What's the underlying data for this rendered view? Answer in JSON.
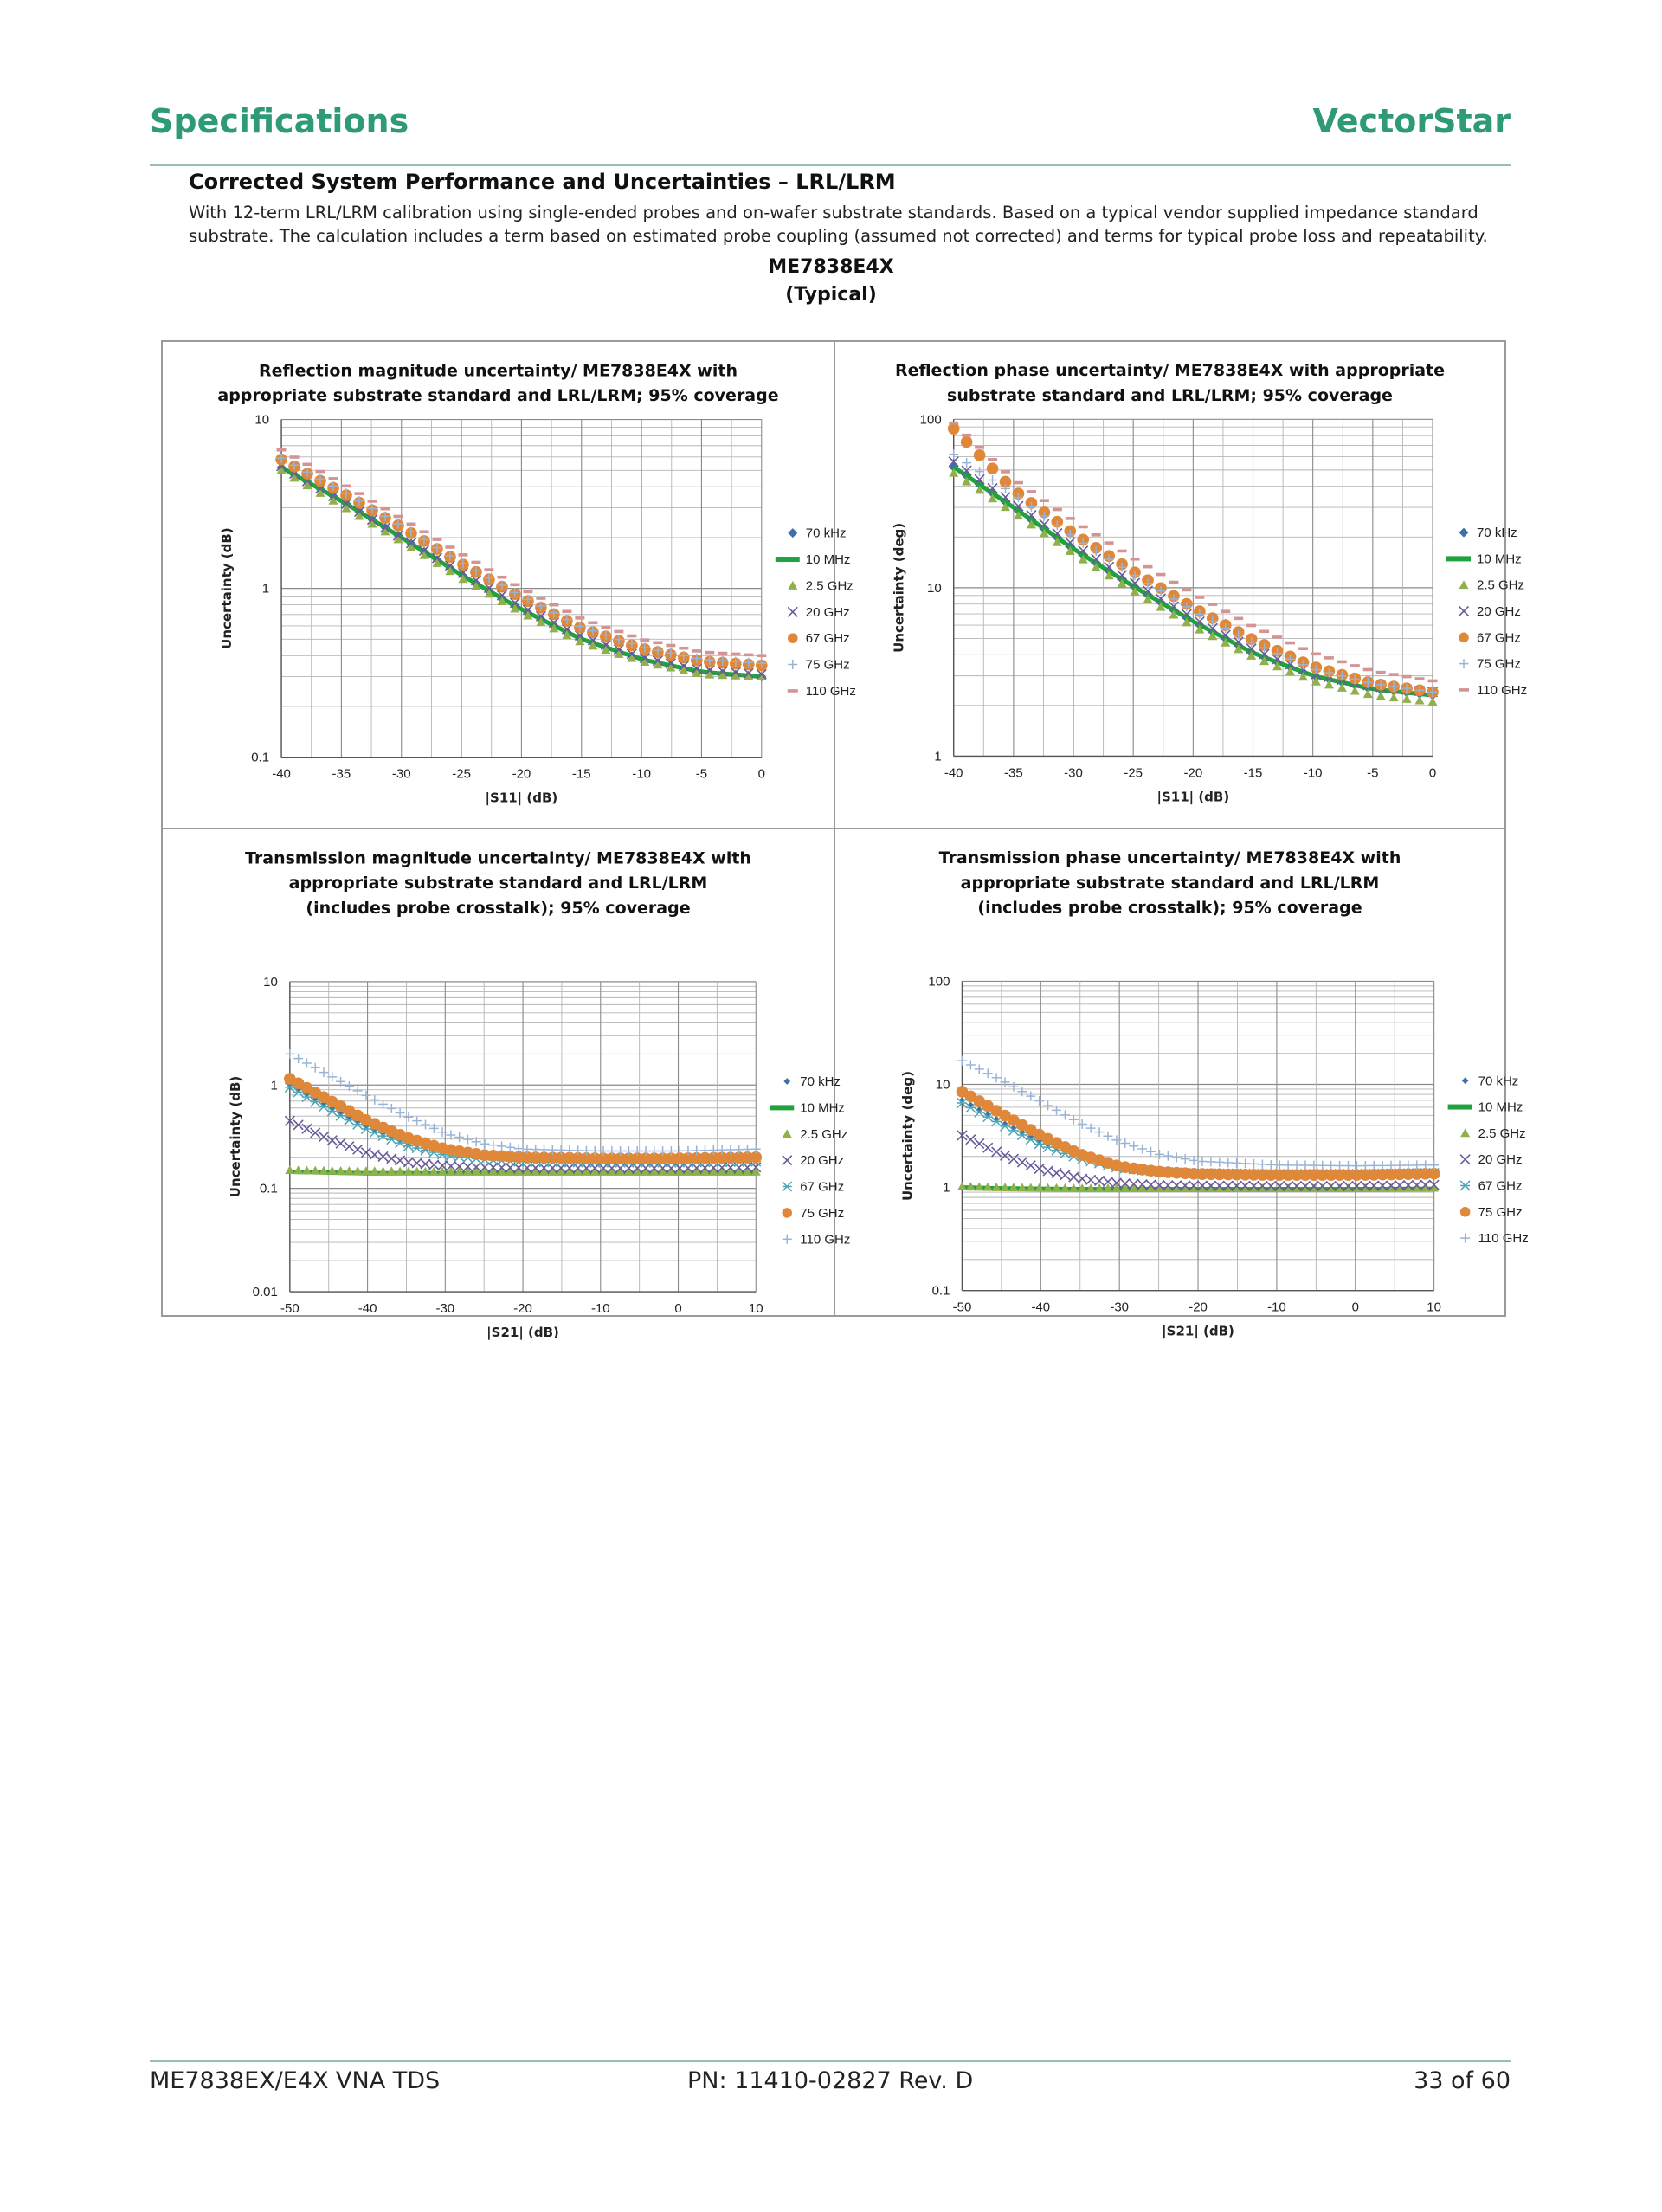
{
  "header": {
    "left": "Specifications",
    "right": "VectorStar"
  },
  "section": {
    "title": "Corrected System Performance and Uncertainties – LRL/LRM",
    "description": "With 12-term LRL/LRM calibration using single-ended probes and on-wafer substrate standards. Based on a typical vendor supplied impedance standard substrate. The calculation includes a term based on estimated probe coupling (assumed not corrected) and terms for typical probe loss and repeatability.",
    "model": "ME7838E4X",
    "qualifier": "(Typical)"
  },
  "footer": {
    "left": "ME7838EX/E4X VNA TDS",
    "center": "PN: 11410-02827  Rev. D",
    "right": "33 of 60"
  },
  "colors": {
    "70 kHz": "#3f6fa8",
    "10 MHz": "#1fa33c",
    "2.5 GHz": "#8fb04a",
    "20 GHz": "#6a5a9a",
    "67 GHz": "#e0883a",
    "75 GHz": "#9ab4d8",
    "110 GHz": "#d49494",
    "67 GHz (teal x)": "#4aa5b5"
  },
  "chart_data": [
    {
      "type": "scatter",
      "title": [
        "Reflection magnitude uncertainty/ ME7838E4X with",
        "appropriate substrate standard and LRL/LRM; 95% coverage"
      ],
      "xlabel": "|S11| (dB)",
      "ylabel": "Uncertainty (dB)",
      "xlim": [
        -40,
        0
      ],
      "xticks": [
        "-40",
        "-35",
        "-30",
        "-25",
        "-20",
        "-15",
        "-10",
        "-5",
        "0"
      ],
      "ylim": [
        0.1,
        10
      ],
      "yscale": "log",
      "yticks": [
        "0.1",
        "1",
        "10"
      ],
      "grid": true,
      "legend": "right",
      "series": [
        {
          "name": "70 kHz",
          "marker": "diamond",
          "x": [
            -40,
            -35,
            -30,
            -25,
            -20,
            -15,
            -10,
            -5,
            0
          ],
          "values": [
            5.2,
            3.3,
            2.0,
            1.2,
            0.75,
            0.5,
            0.38,
            0.32,
            0.3
          ]
        },
        {
          "name": "10 MHz",
          "marker": "line",
          "x": [
            -40,
            -35,
            -30,
            -25,
            -20,
            -15,
            -10,
            -5,
            0
          ],
          "values": [
            5.2,
            3.3,
            2.0,
            1.2,
            0.75,
            0.5,
            0.38,
            0.32,
            0.3
          ]
        },
        {
          "name": "2.5 GHz",
          "marker": "triangle",
          "x": [
            -40,
            -35,
            -30,
            -25,
            -20,
            -15,
            -10,
            -5,
            0
          ],
          "values": [
            5.0,
            3.1,
            1.9,
            1.15,
            0.72,
            0.48,
            0.37,
            0.31,
            0.3
          ]
        },
        {
          "name": "20 GHz",
          "marker": "x",
          "x": [
            -40,
            -35,
            -30,
            -25,
            -20,
            -15,
            -10,
            -5,
            0
          ],
          "values": [
            5.3,
            3.3,
            2.0,
            1.25,
            0.78,
            0.52,
            0.39,
            0.33,
            0.31
          ]
        },
        {
          "name": "67 GHz",
          "marker": "circle",
          "x": [
            -40,
            -35,
            -30,
            -25,
            -20,
            -15,
            -10,
            -5,
            0
          ],
          "values": [
            5.8,
            3.7,
            2.3,
            1.4,
            0.88,
            0.58,
            0.44,
            0.37,
            0.35
          ]
        },
        {
          "name": "75 GHz",
          "marker": "plus",
          "x": [
            -40,
            -35,
            -30,
            -25,
            -20,
            -15,
            -10,
            -5,
            0
          ],
          "values": [
            5.9,
            3.8,
            2.35,
            1.42,
            0.9,
            0.59,
            0.45,
            0.38,
            0.36
          ]
        },
        {
          "name": "110 GHz",
          "marker": "dash",
          "x": [
            -40,
            -35,
            -30,
            -25,
            -20,
            -15,
            -10,
            -5,
            0
          ],
          "values": [
            6.6,
            4.2,
            2.6,
            1.6,
            1.0,
            0.66,
            0.5,
            0.42,
            0.4
          ]
        }
      ]
    },
    {
      "type": "scatter",
      "title": [
        "Reflection phase uncertainty/ ME7838E4X with appropriate",
        "substrate standard and LRL/LRM; 95% coverage"
      ],
      "xlabel": "|S11| (dB)",
      "ylabel": "Uncertainty (deg)",
      "xlim": [
        -40,
        0
      ],
      "xticks": [
        "-40",
        "-35",
        "-30",
        "-25",
        "-20",
        "-15",
        "-10",
        "-5",
        "0"
      ],
      "ylim": [
        1,
        100
      ],
      "yscale": "log",
      "yticks": [
        "1",
        "10",
        "100"
      ],
      "grid": true,
      "legend": "right",
      "series": [
        {
          "name": "70 kHz",
          "marker": "diamond",
          "x": [
            -40,
            -35,
            -30,
            -25,
            -20,
            -15,
            -10,
            -5,
            0
          ],
          "values": [
            52,
            30,
            17,
            10.2,
            6.3,
            4.1,
            3.0,
            2.5,
            2.3
          ]
        },
        {
          "name": "10 MHz",
          "marker": "line",
          "x": [
            -40,
            -35,
            -30,
            -25,
            -20,
            -15,
            -10,
            -5,
            0
          ],
          "values": [
            52,
            30,
            17,
            10.2,
            6.3,
            4.1,
            3.0,
            2.5,
            2.3
          ]
        },
        {
          "name": "2.5 GHz",
          "marker": "triangle",
          "x": [
            -40,
            -35,
            -30,
            -25,
            -20,
            -15,
            -10,
            -5,
            0
          ],
          "values": [
            48,
            28,
            16,
            9.6,
            5.9,
            3.9,
            2.8,
            2.3,
            2.1
          ]
        },
        {
          "name": "20 GHz",
          "marker": "x",
          "x": [
            -40,
            -35,
            -30,
            -25,
            -20,
            -15,
            -10,
            -5,
            0
          ],
          "values": [
            56,
            32,
            18,
            10.8,
            6.6,
            4.3,
            3.1,
            2.6,
            2.4
          ]
        },
        {
          "name": "67 GHz",
          "marker": "circle",
          "x": [
            -40,
            -35,
            -30,
            -25,
            -20,
            -15,
            -10,
            -5,
            0
          ],
          "values": [
            88,
            38,
            21,
            12.5,
            7.6,
            4.9,
            3.4,
            2.7,
            2.4
          ]
        },
        {
          "name": "75 GHz",
          "marker": "plus",
          "x": [
            -40,
            -35,
            -30,
            -25,
            -20,
            -15,
            -10,
            -5,
            0
          ],
          "values": [
            62,
            36,
            20,
            12,
            7.3,
            4.7,
            3.3,
            2.7,
            2.4
          ]
        },
        {
          "name": "110 GHz",
          "marker": "dash",
          "x": [
            -40,
            -35,
            -30,
            -25,
            -20,
            -15,
            -10,
            -5,
            0
          ],
          "values": [
            95,
            44,
            25,
            15,
            9.2,
            5.9,
            4.1,
            3.2,
            2.8
          ]
        }
      ]
    },
    {
      "type": "scatter",
      "title": [
        "Transmission magnitude uncertainty/ ME7838E4X with",
        "appropriate substrate standard and LRL/LRM",
        "(includes probe crosstalk); 95% coverage"
      ],
      "xlabel": "|S21| (dB)",
      "ylabel": "Uncertainty (dB)",
      "xlim": [
        -50,
        10
      ],
      "xticks": [
        "-50",
        "-40",
        "-30",
        "-20",
        "-10",
        "0",
        "10"
      ],
      "ylim": [
        0.01,
        10
      ],
      "yscale": "log",
      "yticks": [
        "0.01",
        "0.1",
        "1",
        "10"
      ],
      "grid": true,
      "legend": "right",
      "series": [
        {
          "name": "70 kHz",
          "marker": "smalldiamond",
          "x": [
            -50,
            -45,
            -40,
            -35,
            -30,
            -25,
            -20,
            -10,
            0,
            10
          ],
          "values": [
            1.0,
            0.62,
            0.4,
            0.28,
            0.22,
            0.2,
            0.19,
            0.185,
            0.185,
            0.19
          ]
        },
        {
          "name": "10 MHz",
          "marker": "line",
          "x": [
            -50,
            -45,
            -40,
            -35,
            -30,
            -25,
            -20,
            -10,
            0,
            10
          ],
          "values": [
            0.145,
            0.142,
            0.14,
            0.14,
            0.14,
            0.14,
            0.14,
            0.14,
            0.14,
            0.14
          ]
        },
        {
          "name": "2.5 GHz",
          "marker": "triangle",
          "x": [
            -50,
            -45,
            -40,
            -35,
            -30,
            -25,
            -20,
            -10,
            0,
            10
          ],
          "values": [
            0.15,
            0.148,
            0.147,
            0.146,
            0.145,
            0.145,
            0.145,
            0.145,
            0.145,
            0.145
          ]
        },
        {
          "name": "20 GHz",
          "marker": "x",
          "x": [
            -50,
            -45,
            -40,
            -35,
            -30,
            -25,
            -20,
            -10,
            0,
            10
          ],
          "values": [
            0.45,
            0.3,
            0.22,
            0.18,
            0.165,
            0.16,
            0.158,
            0.157,
            0.157,
            0.16
          ]
        },
        {
          "name": "67 GHz",
          "marker": "asterisk",
          "x": [
            -50,
            -45,
            -40,
            -35,
            -30,
            -25,
            -20,
            -10,
            0,
            10
          ],
          "values": [
            0.95,
            0.58,
            0.37,
            0.26,
            0.21,
            0.19,
            0.18,
            0.178,
            0.178,
            0.182
          ]
        },
        {
          "name": "75 GHz",
          "marker": "circle",
          "x": [
            -50,
            -45,
            -40,
            -35,
            -30,
            -25,
            -20,
            -10,
            0,
            10
          ],
          "values": [
            1.15,
            0.72,
            0.45,
            0.31,
            0.24,
            0.21,
            0.2,
            0.195,
            0.195,
            0.2
          ]
        },
        {
          "name": "110 GHz",
          "marker": "plus",
          "x": [
            -50,
            -45,
            -40,
            -35,
            -30,
            -25,
            -20,
            -10,
            0,
            10
          ],
          "values": [
            2.0,
            1.25,
            0.78,
            0.5,
            0.34,
            0.27,
            0.24,
            0.23,
            0.23,
            0.24
          ]
        }
      ]
    },
    {
      "type": "scatter",
      "title": [
        "Transmission phase uncertainty/ ME7838E4X with",
        "appropriate substrate standard and LRL/LRM",
        "(includes probe crosstalk); 95% coverage"
      ],
      "xlabel": "|S21| (dB)",
      "ylabel": "Uncertainty (deg)",
      "xlim": [
        -50,
        10
      ],
      "xticks": [
        "-50",
        "-40",
        "-30",
        "-20",
        "-10",
        "0",
        "10"
      ],
      "ylim": [
        0.1,
        100
      ],
      "yscale": "log",
      "yticks": [
        "0.1",
        "1",
        "10",
        "100"
      ],
      "grid": true,
      "legend": "right",
      "series": [
        {
          "name": "70 kHz",
          "marker": "smalldiamond",
          "x": [
            -50,
            -45,
            -40,
            -35,
            -30,
            -25,
            -20,
            -10,
            0,
            10
          ],
          "values": [
            7.0,
            4.3,
            2.8,
            2.0,
            1.6,
            1.45,
            1.4,
            1.38,
            1.38,
            1.4
          ]
        },
        {
          "name": "10 MHz",
          "marker": "line",
          "x": [
            -50,
            -45,
            -40,
            -35,
            -30,
            -25,
            -20,
            -10,
            0,
            10
          ],
          "values": [
            1.0,
            0.98,
            0.97,
            0.96,
            0.96,
            0.96,
            0.96,
            0.96,
            0.96,
            0.97
          ]
        },
        {
          "name": "2.5 GHz",
          "marker": "triangle",
          "x": [
            -50,
            -45,
            -40,
            -35,
            -30,
            -25,
            -20,
            -10,
            0,
            10
          ],
          "values": [
            1.02,
            1.0,
            0.99,
            0.98,
            0.98,
            0.98,
            0.98,
            0.98,
            0.98,
            0.99
          ]
        },
        {
          "name": "20 GHz",
          "marker": "x",
          "x": [
            -50,
            -45,
            -40,
            -35,
            -30,
            -25,
            -20,
            -10,
            0,
            10
          ],
          "values": [
            3.2,
            2.1,
            1.5,
            1.22,
            1.1,
            1.05,
            1.04,
            1.03,
            1.03,
            1.06
          ]
        },
        {
          "name": "67 GHz",
          "marker": "asterisk",
          "x": [
            -50,
            -45,
            -40,
            -35,
            -30,
            -25,
            -20,
            -10,
            0,
            10
          ],
          "values": [
            6.6,
            4.1,
            2.6,
            1.9,
            1.55,
            1.42,
            1.37,
            1.35,
            1.35,
            1.38
          ]
        },
        {
          "name": "75 GHz",
          "marker": "circle",
          "x": [
            -50,
            -45,
            -40,
            -35,
            -30,
            -25,
            -20,
            -10,
            0,
            10
          ],
          "values": [
            8.5,
            5.2,
            3.2,
            2.1,
            1.6,
            1.42,
            1.35,
            1.32,
            1.32,
            1.36
          ]
        },
        {
          "name": "110 GHz",
          "marker": "plus",
          "x": [
            -50,
            -45,
            -40,
            -35,
            -30,
            -25,
            -20,
            -10,
            0,
            10
          ],
          "values": [
            17,
            11,
            6.8,
            4.2,
            2.8,
            2.1,
            1.8,
            1.65,
            1.62,
            1.65
          ]
        }
      ]
    }
  ]
}
